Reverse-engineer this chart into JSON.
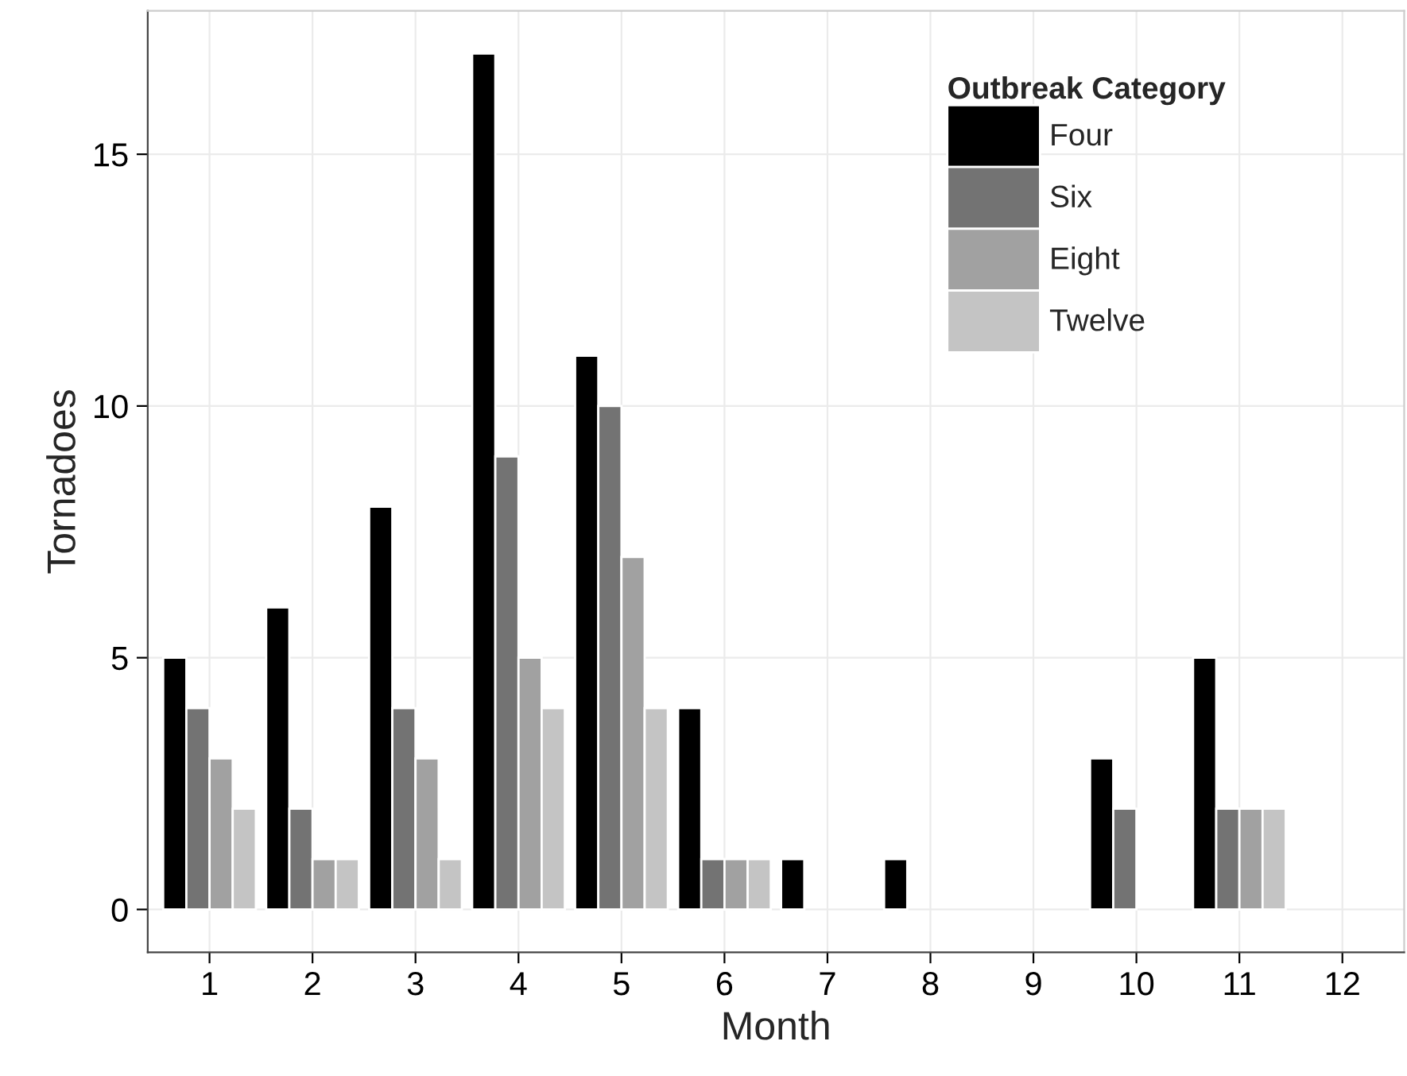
{
  "chart_data": {
    "type": "bar",
    "xlabel": "Month",
    "ylabel": "Tornadoes",
    "legend_title": "Outbreak Category",
    "categories": [
      "1",
      "2",
      "3",
      "4",
      "5",
      "6",
      "7",
      "8",
      "9",
      "10",
      "11",
      "12"
    ],
    "series": [
      {
        "name": "Four",
        "color": "#000000",
        "values": [
          5,
          6,
          8,
          17,
          11,
          4,
          1,
          1,
          null,
          3,
          5,
          null
        ]
      },
      {
        "name": "Six",
        "color": "#737373",
        "values": [
          4,
          2,
          4,
          9,
          10,
          1,
          null,
          null,
          null,
          2,
          2,
          null
        ]
      },
      {
        "name": "Eight",
        "color": "#a1a1a1",
        "values": [
          3,
          1,
          3,
          5,
          7,
          1,
          null,
          null,
          null,
          null,
          2,
          null
        ]
      },
      {
        "name": "Twelve",
        "color": "#c4c4c4",
        "values": [
          2,
          1,
          1,
          4,
          4,
          1,
          null,
          null,
          null,
          null,
          2,
          null
        ]
      }
    ],
    "ylim": [
      -0.85,
      17.85
    ],
    "yticks": [
      0,
      5,
      10,
      15
    ],
    "grid": true,
    "legend": "top right"
  }
}
